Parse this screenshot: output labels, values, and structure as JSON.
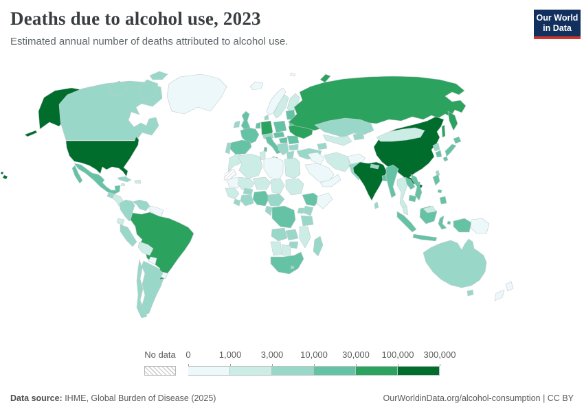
{
  "header": {
    "title": "Deaths due to alcohol use, 2023",
    "subtitle": "Estimated annual number of deaths attributed to alcohol use.",
    "logo_line1": "Our World",
    "logo_line2": "in Data"
  },
  "legend": {
    "no_data_label": "No data",
    "tick_labels": [
      "0",
      "1,000",
      "3,000",
      "10,000",
      "30,000",
      "100,000",
      "300,000"
    ]
  },
  "footer": {
    "source_label": "Data source:",
    "source_text": " IHME, Global Burden of Disease (2025)",
    "right_text": "OurWorldinData.org/alcohol-consumption | CC BY"
  },
  "colors": {
    "scale": [
      "#edf8fb",
      "#ccece6",
      "#99d8c9",
      "#66c2a4",
      "#2ca25f",
      "#006d2c"
    ],
    "logo_bg": "#12305e",
    "logo_red": "#d0342c",
    "border": "#c2cbce"
  },
  "chart_data": {
    "type": "choropleth",
    "title": "Deaths due to alcohol use, 2023",
    "unit": "deaths attributed to alcohol use (annual)",
    "legend_position": "bottom",
    "bins": [
      "0–1,000",
      "1,000–3,000",
      "3,000–10,000",
      "10,000–30,000",
      "30,000–100,000",
      "100,000–300,000"
    ],
    "no_data": [
      "Western Sahara"
    ],
    "countries": [
      {
        "id": "usa",
        "name": "United States",
        "bin": 5
      },
      {
        "id": "canada",
        "name": "Canada",
        "bin": 2
      },
      {
        "id": "greenland",
        "name": "Greenland",
        "bin": 0
      },
      {
        "id": "mexico",
        "name": "Mexico",
        "bin": 3
      },
      {
        "id": "guatemala",
        "name": "Guatemala",
        "bin": 2
      },
      {
        "id": "central-america",
        "name": "Central America (other)",
        "bin": 1
      },
      {
        "id": "cuba",
        "name": "Cuba",
        "bin": 2
      },
      {
        "id": "hispaniola",
        "name": "Haiti & Dominican Republic",
        "bin": 1
      },
      {
        "id": "jamaica",
        "name": "Jamaica",
        "bin": 1
      },
      {
        "id": "colombia",
        "name": "Colombia",
        "bin": 2
      },
      {
        "id": "venezuela",
        "name": "Venezuela",
        "bin": 2
      },
      {
        "id": "guyanas",
        "name": "Guyana & Suriname",
        "bin": 0
      },
      {
        "id": "ecuador",
        "name": "Ecuador",
        "bin": 1
      },
      {
        "id": "peru",
        "name": "Peru",
        "bin": 2
      },
      {
        "id": "brazil",
        "name": "Brazil",
        "bin": 4
      },
      {
        "id": "bolivia",
        "name": "Bolivia",
        "bin": 1
      },
      {
        "id": "paraguay",
        "name": "Paraguay",
        "bin": 0
      },
      {
        "id": "uruguay",
        "name": "Uruguay",
        "bin": 0
      },
      {
        "id": "argentina",
        "name": "Argentina",
        "bin": 2
      },
      {
        "id": "chile",
        "name": "Chile",
        "bin": 2
      },
      {
        "id": "iceland",
        "name": "Iceland",
        "bin": 0
      },
      {
        "id": "uk",
        "name": "United Kingdom",
        "bin": 3
      },
      {
        "id": "ireland",
        "name": "Ireland",
        "bin": 2
      },
      {
        "id": "norway",
        "name": "Norway",
        "bin": 0
      },
      {
        "id": "sweden",
        "name": "Sweden",
        "bin": 1
      },
      {
        "id": "finland",
        "name": "Finland",
        "bin": 1
      },
      {
        "id": "denmark",
        "name": "Denmark",
        "bin": 2
      },
      {
        "id": "baltics",
        "name": "Baltic states",
        "bin": 3
      },
      {
        "id": "belarus",
        "name": "Belarus",
        "bin": 3
      },
      {
        "id": "poland",
        "name": "Poland",
        "bin": 3
      },
      {
        "id": "germany",
        "name": "Germany",
        "bin": 4
      },
      {
        "id": "benelux",
        "name": "Netherlands & Belgium",
        "bin": 3
      },
      {
        "id": "france",
        "name": "France",
        "bin": 3
      },
      {
        "id": "spain",
        "name": "Spain",
        "bin": 3
      },
      {
        "id": "portugal",
        "name": "Portugal",
        "bin": 2
      },
      {
        "id": "italy",
        "name": "Italy",
        "bin": 3
      },
      {
        "id": "alps",
        "name": "Switzerland & Austria",
        "bin": 2
      },
      {
        "id": "czech-slovakia",
        "name": "Czechia & Slovakia",
        "bin": 3
      },
      {
        "id": "hungary",
        "name": "Hungary",
        "bin": 3
      },
      {
        "id": "balkans",
        "name": "Western Balkans",
        "bin": 2
      },
      {
        "id": "romania",
        "name": "Romania",
        "bin": 3
      },
      {
        "id": "bulgaria",
        "name": "Bulgaria",
        "bin": 2
      },
      {
        "id": "greece",
        "name": "Greece",
        "bin": 2
      },
      {
        "id": "ukraine",
        "name": "Ukraine",
        "bin": 4
      },
      {
        "id": "turkey",
        "name": "Turkey",
        "bin": 2
      },
      {
        "id": "caucasus",
        "name": "Caucasus",
        "bin": 2
      },
      {
        "id": "russia",
        "name": "Russia",
        "bin": 4
      },
      {
        "id": "svalbard",
        "name": "Svalbard",
        "bin": 0
      },
      {
        "id": "syria-iraq",
        "name": "Syria & Iraq",
        "bin": 0
      },
      {
        "id": "saudi",
        "name": "Saudi Arabia",
        "bin": 0
      },
      {
        "id": "yemen-oman",
        "name": "Yemen & Oman",
        "bin": 0
      },
      {
        "id": "iran",
        "name": "Iran",
        "bin": 1
      },
      {
        "id": "afghanistan",
        "name": "Afghanistan",
        "bin": 0
      },
      {
        "id": "pakistan",
        "name": "Pakistan",
        "bin": 2
      },
      {
        "id": "kazakhstan",
        "name": "Kazakhstan",
        "bin": 2
      },
      {
        "id": "uzbek-turkmen",
        "name": "Uzbekistan & Turkmenistan",
        "bin": 1
      },
      {
        "id": "kyrgyz-tajik",
        "name": "Kyrgyzstan & Tajikistan",
        "bin": 2
      },
      {
        "id": "india",
        "name": "India",
        "bin": 5
      },
      {
        "id": "nepal",
        "name": "Nepal",
        "bin": 2
      },
      {
        "id": "bangladesh",
        "name": "Bangladesh",
        "bin": 3
      },
      {
        "id": "sri-lanka",
        "name": "Sri Lanka",
        "bin": 2
      },
      {
        "id": "china",
        "name": "China",
        "bin": 5
      },
      {
        "id": "mongolia",
        "name": "Mongolia",
        "bin": 1
      },
      {
        "id": "taiwan",
        "name": "Taiwan",
        "bin": 2
      },
      {
        "id": "north-korea",
        "name": "North Korea",
        "bin": 2
      },
      {
        "id": "south-korea",
        "name": "South Korea",
        "bin": 3
      },
      {
        "id": "japan",
        "name": "Japan",
        "bin": 3
      },
      {
        "id": "myanmar",
        "name": "Myanmar",
        "bin": 3
      },
      {
        "id": "thailand",
        "name": "Thailand",
        "bin": 1
      },
      {
        "id": "laos",
        "name": "Laos",
        "bin": 3
      },
      {
        "id": "vietnam",
        "name": "Vietnam",
        "bin": 3
      },
      {
        "id": "cambodia",
        "name": "Cambodia",
        "bin": 3
      },
      {
        "id": "malaysia",
        "name": "Malaysia",
        "bin": 1
      },
      {
        "id": "indonesia",
        "name": "Indonesia",
        "bin": 3
      },
      {
        "id": "philippines",
        "name": "Philippines",
        "bin": 3
      },
      {
        "id": "png",
        "name": "Papua New Guinea",
        "bin": 0
      },
      {
        "id": "australia",
        "name": "Australia",
        "bin": 2
      },
      {
        "id": "new-zealand",
        "name": "New Zealand",
        "bin": 0
      },
      {
        "id": "morocco",
        "name": "Morocco",
        "bin": 1
      },
      {
        "id": "western-sahara",
        "name": "Western Sahara",
        "bin": -1
      },
      {
        "id": "algeria",
        "name": "Algeria",
        "bin": 1
      },
      {
        "id": "tunisia",
        "name": "Tunisia",
        "bin": 1
      },
      {
        "id": "libya",
        "name": "Libya",
        "bin": 0
      },
      {
        "id": "egypt",
        "name": "Egypt",
        "bin": 1
      },
      {
        "id": "mauritania",
        "name": "Mauritania",
        "bin": 0
      },
      {
        "id": "mali",
        "name": "Mali",
        "bin": 1
      },
      {
        "id": "niger",
        "name": "Niger",
        "bin": 1
      },
      {
        "id": "chad",
        "name": "Chad",
        "bin": 1
      },
      {
        "id": "sudan",
        "name": "Sudan",
        "bin": 1
      },
      {
        "id": "west-africa",
        "name": "Senegal & Guinea",
        "bin": 1
      },
      {
        "id": "sierra-liberia",
        "name": "Sierra Leone & Liberia",
        "bin": 2
      },
      {
        "id": "ivory-ghana",
        "name": "Côte d'Ivoire & Ghana",
        "bin": 2
      },
      {
        "id": "burkina",
        "name": "Burkina Faso",
        "bin": 2
      },
      {
        "id": "nigeria",
        "name": "Nigeria",
        "bin": 3
      },
      {
        "id": "cameroon-car",
        "name": "Cameroon & Central African Rep.",
        "bin": 2
      },
      {
        "id": "ethiopia",
        "name": "Ethiopia",
        "bin": 3
      },
      {
        "id": "somalia",
        "name": "Somalia",
        "bin": 0
      },
      {
        "id": "kenya",
        "name": "Kenya",
        "bin": 2
      },
      {
        "id": "uganda",
        "name": "Uganda",
        "bin": 2
      },
      {
        "id": "tanzania",
        "name": "Tanzania",
        "bin": 2
      },
      {
        "id": "drc",
        "name": "Democratic Republic of Congo",
        "bin": 3
      },
      {
        "id": "gabon-congo",
        "name": "Gabon & Congo",
        "bin": 2
      },
      {
        "id": "angola",
        "name": "Angola",
        "bin": 2
      },
      {
        "id": "zambia",
        "name": "Zambia",
        "bin": 2
      },
      {
        "id": "mozambique",
        "name": "Mozambique",
        "bin": 1
      },
      {
        "id": "zimbabwe",
        "name": "Zimbabwe",
        "bin": 2
      },
      {
        "id": "namibia",
        "name": "Namibia",
        "bin": 1
      },
      {
        "id": "botswana",
        "name": "Botswana",
        "bin": 1
      },
      {
        "id": "south-africa",
        "name": "South Africa",
        "bin": 3
      },
      {
        "id": "lesotho",
        "name": "Lesotho",
        "bin": 2
      },
      {
        "id": "madagascar",
        "name": "Madagascar",
        "bin": 2
      }
    ]
  }
}
